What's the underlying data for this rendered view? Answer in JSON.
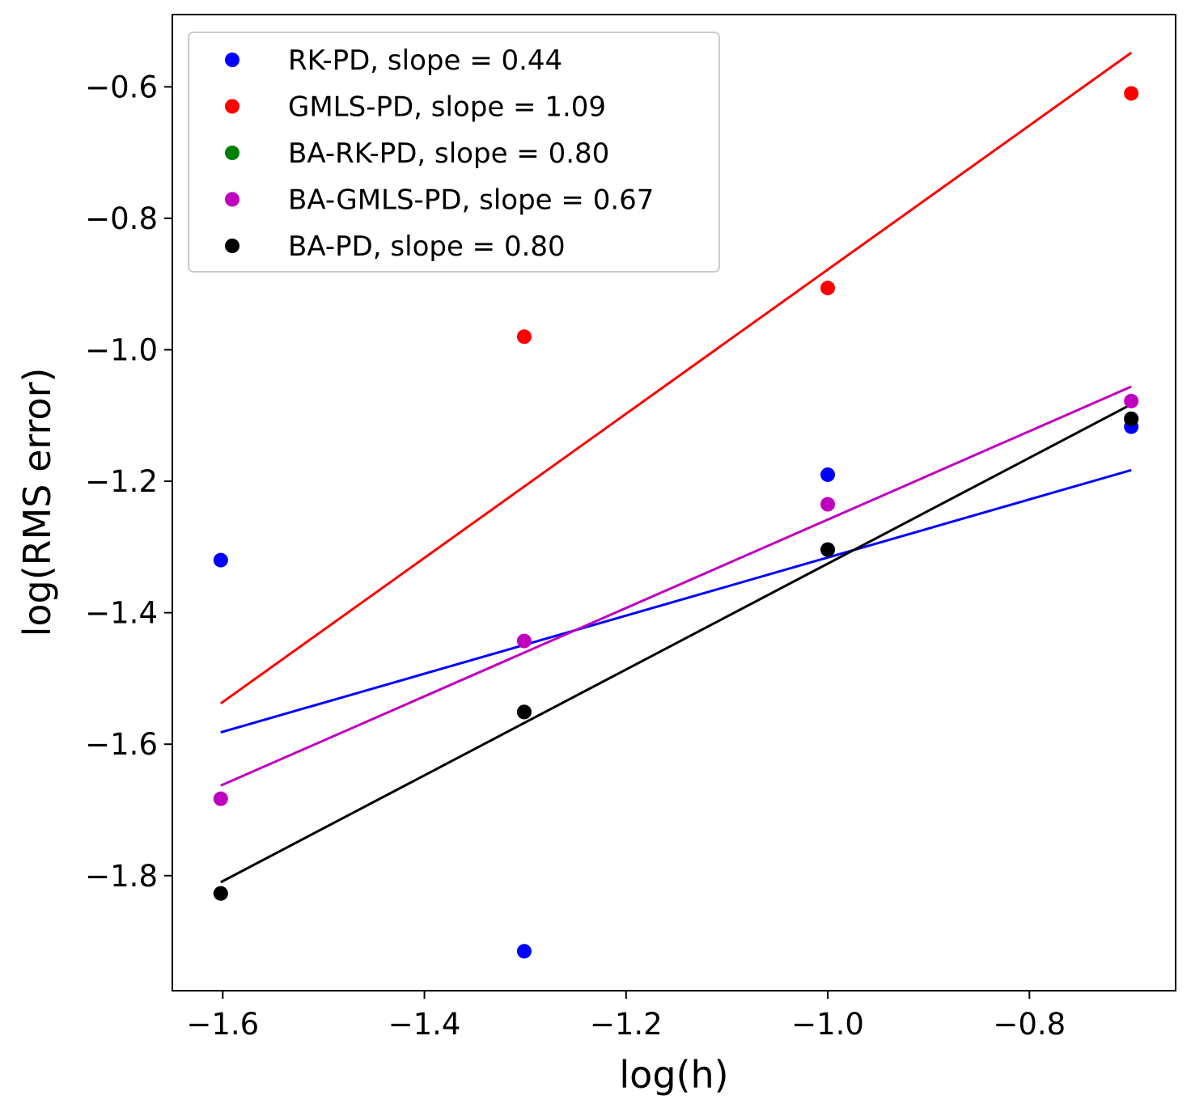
{
  "chart_data": {
    "type": "scatter",
    "title": "",
    "xlabel": "log(h)",
    "ylabel": "log(RMS error)",
    "xlim": [
      -1.65,
      -0.655
    ],
    "ylim": [
      -1.975,
      -0.49
    ],
    "xticks": [
      -1.6,
      -1.4,
      -1.2,
      -1.0,
      -0.8
    ],
    "xtick_labels": [
      "−1.6",
      "−1.4",
      "−1.2",
      "−1.0",
      "−0.8"
    ],
    "yticks": [
      -1.8,
      -1.6,
      -1.4,
      -1.2,
      -1.0,
      -0.8,
      -0.6
    ],
    "ytick_labels": [
      "−1.8",
      "−1.6",
      "−1.4",
      "−1.2",
      "−1.0",
      "−0.8",
      "−0.6"
    ],
    "grid": false,
    "legend_position": "top-left",
    "series": [
      {
        "name": "RK-PD, slope = 0.44",
        "color": "#0000ff",
        "x": [
          -1.602,
          -1.301,
          -1.0,
          -0.699
        ],
        "y": [
          -1.32,
          -1.915,
          -1.19,
          -1.117
        ],
        "fit": {
          "x": [
            -1.602,
            -0.699
          ],
          "y": [
            -1.582,
            -1.183
          ]
        }
      },
      {
        "name": "GMLS-PD, slope = 1.09",
        "color": "#ff0000",
        "x": [
          -1.602,
          -1.301,
          -1.0,
          -0.699
        ],
        "y": [
          null,
          -0.98,
          -0.906,
          -0.61
        ],
        "fit": {
          "x": [
            -1.602,
            -0.699
          ],
          "y": [
            -1.538,
            -0.548
          ]
        }
      },
      {
        "name": "BA-RK-PD, slope = 0.80",
        "color": "#008000",
        "x": [
          -1.602,
          -1.301,
          -1.0,
          -0.699
        ],
        "y": [
          -1.827,
          -1.551,
          -1.304,
          -1.105
        ],
        "fit": null
      },
      {
        "name": "BA-GMLS-PD, slope = 0.67",
        "color": "#bf00bf",
        "x": [
          -1.602,
          -1.301,
          -1.0,
          -0.699
        ],
        "y": [
          -1.683,
          -1.443,
          -1.235,
          -1.078
        ],
        "fit": {
          "x": [
            -1.602,
            -0.699
          ],
          "y": [
            -1.663,
            -1.056
          ]
        }
      },
      {
        "name": "BA-PD, slope = 0.80",
        "color": "#000000",
        "x": [
          -1.602,
          -1.301,
          -1.0,
          -0.699
        ],
        "y": [
          -1.827,
          -1.551,
          -1.304,
          -1.105
        ],
        "fit": {
          "x": [
            -1.602,
            -0.699
          ],
          "y": [
            -1.81,
            -1.083
          ]
        }
      }
    ]
  }
}
